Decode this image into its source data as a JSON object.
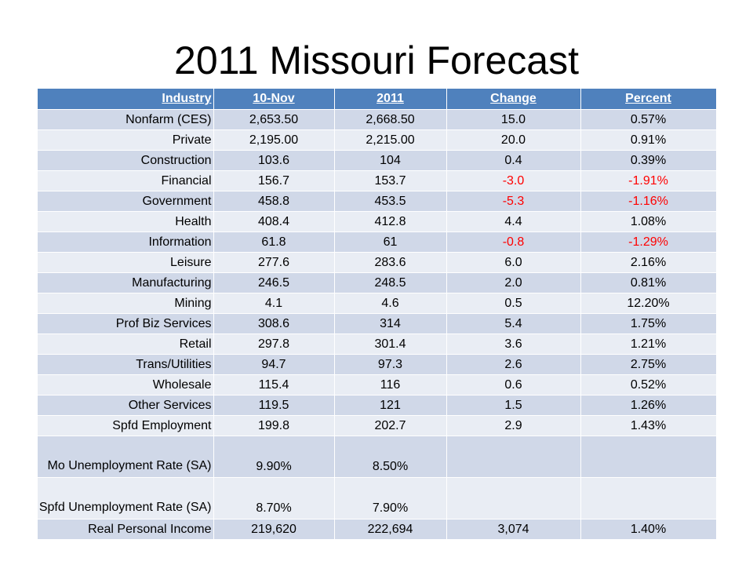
{
  "title": "2011 Missouri Forecast",
  "headers": [
    "Industry",
    "10-Nov",
    "2011",
    "Change",
    "Percent"
  ],
  "rows": [
    {
      "industry": "Nonfarm (CES)",
      "nov10": "2,653.50",
      "y2011": "2,668.50",
      "change": "15.0",
      "percent": "0.57%"
    },
    {
      "industry": "Private",
      "nov10": "2,195.00",
      "y2011": "2,215.00",
      "change": "20.0",
      "percent": "0.91%"
    },
    {
      "industry": "Construction",
      "nov10": "103.6",
      "y2011": "104",
      "change": "0.4",
      "percent": "0.39%"
    },
    {
      "industry": "Financial",
      "nov10": "156.7",
      "y2011": "153.7",
      "change": "-3.0",
      "percent": "-1.91%"
    },
    {
      "industry": "Government",
      "nov10": "458.8",
      "y2011": "453.5",
      "change": "-5.3",
      "percent": "-1.16%"
    },
    {
      "industry": "Health",
      "nov10": "408.4",
      "y2011": "412.8",
      "change": "4.4",
      "percent": "1.08%"
    },
    {
      "industry": "Information",
      "nov10": "61.8",
      "y2011": "61",
      "change": "-0.8",
      "percent": "-1.29%"
    },
    {
      "industry": "Leisure",
      "nov10": "277.6",
      "y2011": "283.6",
      "change": "6.0",
      "percent": "2.16%"
    },
    {
      "industry": "Manufacturing",
      "nov10": "246.5",
      "y2011": "248.5",
      "change": "2.0",
      "percent": "0.81%"
    },
    {
      "industry": "Mining",
      "nov10": "4.1",
      "y2011": "4.6",
      "change": "0.5",
      "percent": "12.20%"
    },
    {
      "industry": "Prof Biz Services",
      "nov10": "308.6",
      "y2011": "314",
      "change": "5.4",
      "percent": "1.75%"
    },
    {
      "industry": "Retail",
      "nov10": "297.8",
      "y2011": "301.4",
      "change": "3.6",
      "percent": "1.21%"
    },
    {
      "industry": "Trans/Utilities",
      "nov10": "94.7",
      "y2011": "97.3",
      "change": "2.6",
      "percent": "2.75%"
    },
    {
      "industry": "Wholesale",
      "nov10": "115.4",
      "y2011": "116",
      "change": "0.6",
      "percent": "0.52%"
    },
    {
      "industry": "Other Services",
      "nov10": "119.5",
      "y2011": "121",
      "change": "1.5",
      "percent": "1.26%"
    },
    {
      "industry": "Spfd Employment",
      "nov10": "199.8",
      "y2011": "202.7",
      "change": "2.9",
      "percent": "1.43%"
    },
    {
      "industry": "Mo Unemployment Rate (SA)",
      "nov10": "9.90%",
      "y2011": "8.50%",
      "change": "",
      "percent": ""
    },
    {
      "industry": "Spfd Unemployment Rate (SA)",
      "nov10": "8.70%",
      "y2011": "7.90%",
      "change": "",
      "percent": ""
    },
    {
      "industry": "Real Personal Income",
      "nov10": "219,620",
      "y2011": "222,694",
      "change": "3,074",
      "percent": "1.40%"
    }
  ],
  "colors": {
    "header_bg": "#4F81BD",
    "row_dark": "#D0D8E8",
    "row_light": "#E9EDF4",
    "negative": "#FF0000"
  }
}
